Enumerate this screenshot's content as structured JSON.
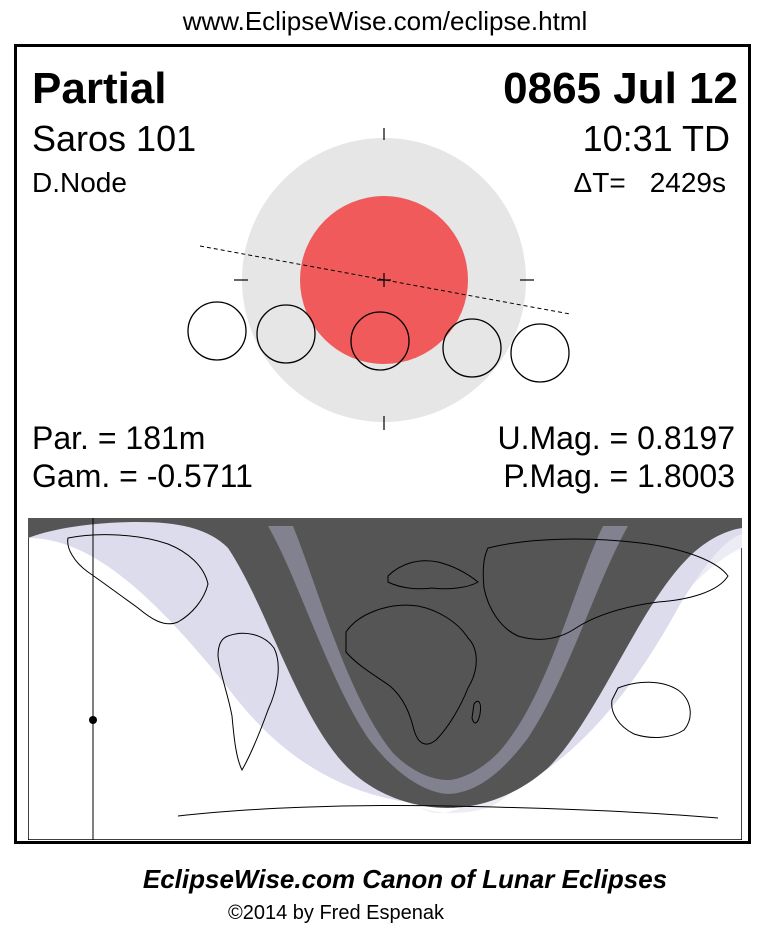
{
  "header": {
    "url": "www.EclipseWise.com/eclipse.html"
  },
  "eclipse": {
    "type": "Partial",
    "date": "0865 Jul 12",
    "saros": "Saros 101",
    "time": "10:31 TD",
    "node": "D.Node",
    "delta_t_label": "ΔT=",
    "delta_t_value": "2429s",
    "par": "Par. = 181m",
    "gam": "Gam. = -0.5711",
    "umag": "U.Mag. = 0.8197",
    "pmag": "P.Mag. = 1.8003"
  },
  "colors": {
    "penumbra": "#e6e6e6",
    "umbra": "#f05a5a",
    "map_night": "#555555",
    "map_umbral_band": "#8a8a9a",
    "map_penumbral": "#dcdcec",
    "map_outer_penumbral": "#ececf4"
  },
  "footer": {
    "title": "EclipseWise.com Canon of Lunar Eclipses",
    "copyright": "©2014 by Fred Espenak"
  }
}
